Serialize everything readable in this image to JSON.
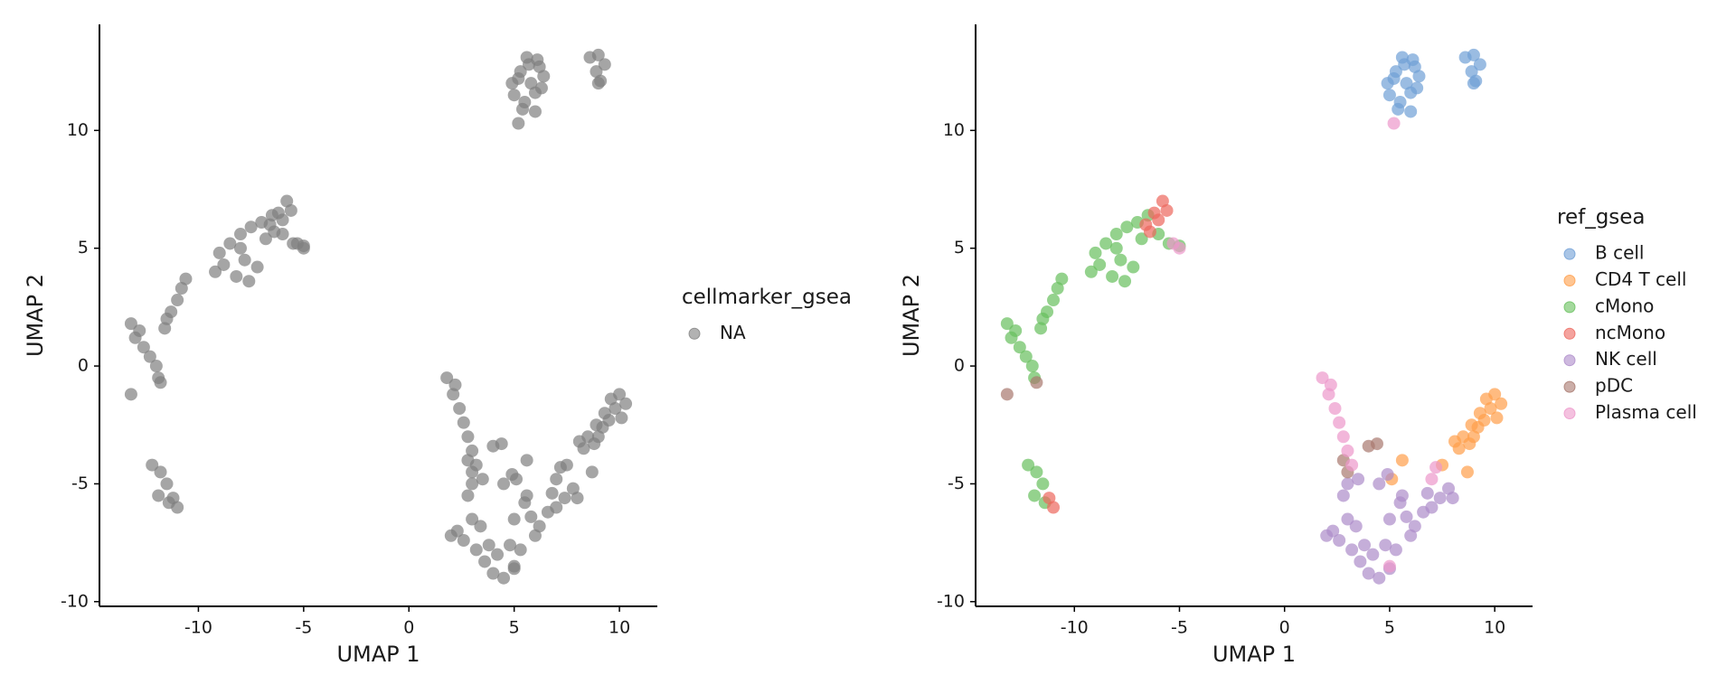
{
  "chart_data": [
    {
      "type": "scatter",
      "xlabel": "UMAP 1",
      "ylabel": "UMAP 2",
      "legend_title": "cellmarker_gsea",
      "xlim": [
        -14.7,
        11.8
      ],
      "ylim": [
        -10.2,
        14.5
      ],
      "xticks": [
        -10,
        -5,
        0,
        5,
        10
      ],
      "yticks": [
        -10,
        -5,
        0,
        5,
        10
      ],
      "series": [
        {
          "name": "NA",
          "color": "#7f7f7f",
          "x": [
            4.9,
            5.3,
            5.7,
            6.1,
            6.4,
            5.0,
            5.5,
            6.0,
            6.3,
            5.2,
            5.8,
            6.2,
            5.6,
            5.4,
            6.0,
            8.6,
            9.0,
            9.3,
            8.9,
            9.1,
            9.0,
            10.0,
            10.3,
            9.8,
            9.5,
            9.2,
            9.0,
            8.8,
            8.5,
            8.3,
            8.1,
            9.6,
            10.1,
            9.3,
            8.9,
            5.6,
            7.5,
            5.1,
            8.7,
            -9.0,
            -8.5,
            -8.0,
            -7.5,
            -7.0,
            -6.5,
            -6.0,
            -8.8,
            -8.2,
            -7.6,
            -7.8,
            -9.2,
            -5.5,
            -5.0,
            -8.0,
            -11.6,
            -11.3,
            -11.0,
            -10.8,
            -10.6,
            -11.5,
            -13.2,
            -13.0,
            -12.6,
            -12.3,
            -12.0,
            -12.8,
            -11.9,
            -12.2,
            -11.8,
            -11.5,
            -11.9,
            -11.4,
            -7.2,
            -6.8,
            -6.6,
            -6.2,
            -5.8,
            -5.6,
            -6.0,
            -6.4,
            -11.0,
            -11.2,
            2.0,
            2.6,
            3.2,
            3.6,
            4.0,
            4.5,
            5.0,
            4.2,
            4.8,
            3.8,
            5.3,
            3.0,
            2.8,
            3.0,
            3.5,
            4.5,
            5.5,
            5.8,
            6.2,
            6.6,
            7.0,
            7.4,
            7.8,
            8.0,
            6.8,
            6.0,
            5.6,
            4.9,
            3.4,
            5.0,
            2.3,
            4.0,
            4.4,
            3.0,
            2.8,
            -11.8,
            -13.2,
            1.8,
            2.1,
            2.4,
            2.6,
            2.8,
            3.0,
            3.2,
            2.2,
            -5.0,
            -5.3,
            5.2,
            5.0,
            7.0,
            7.2
          ],
          "y": [
            12.0,
            12.5,
            12.8,
            13.0,
            12.3,
            11.5,
            11.2,
            11.6,
            11.8,
            12.2,
            12.0,
            12.7,
            13.1,
            10.9,
            10.8,
            13.1,
            13.2,
            12.8,
            12.5,
            12.1,
            12.0,
            -1.2,
            -1.6,
            -1.8,
            -2.3,
            -2.6,
            -3.0,
            -3.3,
            -3.0,
            -3.5,
            -3.2,
            -1.4,
            -2.2,
            -2.0,
            -2.5,
            -4.0,
            -4.2,
            -4.8,
            -4.5,
            4.8,
            5.2,
            5.6,
            5.9,
            6.1,
            6.4,
            5.6,
            4.3,
            3.8,
            3.6,
            4.5,
            4.0,
            5.2,
            5.1,
            5.0,
            1.6,
            2.3,
            2.8,
            3.3,
            3.7,
            2.0,
            1.8,
            1.2,
            0.8,
            0.4,
            0.0,
            1.5,
            -0.5,
            -4.2,
            -4.5,
            -5.0,
            -5.5,
            -5.8,
            4.2,
            5.4,
            6.0,
            6.5,
            7.0,
            6.6,
            6.2,
            5.7,
            -6.0,
            -5.6,
            -7.2,
            -7.4,
            -7.8,
            -8.3,
            -8.8,
            -9.0,
            -8.6,
            -8.0,
            -7.6,
            -7.6,
            -7.8,
            -6.5,
            -5.5,
            -5.0,
            -4.8,
            -5.0,
            -5.8,
            -6.4,
            -6.8,
            -6.2,
            -6.0,
            -5.6,
            -5.2,
            -5.6,
            -5.4,
            -7.2,
            -5.5,
            -4.6,
            -6.8,
            -6.5,
            -7.0,
            -3.4,
            -3.3,
            -4.5,
            -4.0,
            -0.7,
            -1.2,
            -0.5,
            -1.2,
            -1.8,
            -2.4,
            -3.0,
            -3.6,
            -4.2,
            -0.8,
            5.0,
            5.2,
            10.3,
            -8.5,
            -4.8,
            -4.3
          ]
        }
      ]
    },
    {
      "type": "scatter",
      "xlabel": "UMAP 1",
      "ylabel": "UMAP 2",
      "legend_title": "ref_gsea",
      "xlim": [
        -14.7,
        11.8
      ],
      "ylim": [
        -10.2,
        14.5
      ],
      "xticks": [
        -10,
        -5,
        0,
        5,
        10
      ],
      "yticks": [
        -10,
        -5,
        0,
        5,
        10
      ],
      "series": [
        {
          "name": "B cell",
          "color": "#6f9fd6",
          "x": [
            4.9,
            5.3,
            5.7,
            6.1,
            6.4,
            5.0,
            5.5,
            6.0,
            6.3,
            5.2,
            5.8,
            6.2,
            5.6,
            5.4,
            6.0,
            8.6,
            9.0,
            9.3,
            8.9,
            9.1,
            9.0
          ],
          "y": [
            12.0,
            12.5,
            12.8,
            13.0,
            12.3,
            11.5,
            11.2,
            11.6,
            11.8,
            12.2,
            12.0,
            12.7,
            13.1,
            10.9,
            10.8,
            13.1,
            13.2,
            12.8,
            12.5,
            12.1,
            12.0
          ]
        },
        {
          "name": "CD4 T cell",
          "color": "#ff9e4a",
          "x": [
            10.0,
            10.3,
            9.8,
            9.5,
            9.2,
            9.0,
            8.8,
            8.5,
            8.3,
            8.1,
            9.6,
            10.1,
            9.3,
            8.9,
            5.6,
            7.5,
            5.1,
            8.7
          ],
          "y": [
            -1.2,
            -1.6,
            -1.8,
            -2.3,
            -2.6,
            -3.0,
            -3.3,
            -3.0,
            -3.5,
            -3.2,
            -1.4,
            -2.2,
            -2.0,
            -2.5,
            -4.0,
            -4.2,
            -4.8,
            -4.5
          ]
        },
        {
          "name": "cMono",
          "color": "#67bf5c",
          "x": [
            -9.0,
            -8.5,
            -8.0,
            -7.5,
            -7.0,
            -6.5,
            -6.0,
            -8.8,
            -8.2,
            -7.6,
            -7.8,
            -9.2,
            -5.5,
            -5.0,
            -8.0,
            -11.6,
            -11.3,
            -11.0,
            -10.8,
            -10.6,
            -11.5,
            -13.2,
            -13.0,
            -12.6,
            -12.3,
            -12.0,
            -12.8,
            -11.9,
            -12.2,
            -11.8,
            -11.5,
            -11.9,
            -11.4,
            -7.2,
            -6.8
          ],
          "y": [
            4.8,
            5.2,
            5.6,
            5.9,
            6.1,
            6.4,
            5.6,
            4.3,
            3.8,
            3.6,
            4.5,
            4.0,
            5.2,
            5.1,
            5.0,
            1.6,
            2.3,
            2.8,
            3.3,
            3.7,
            2.0,
            1.8,
            1.2,
            0.8,
            0.4,
            0.0,
            1.5,
            -0.5,
            -4.2,
            -4.5,
            -5.0,
            -5.5,
            -5.8,
            4.2,
            5.4
          ]
        },
        {
          "name": "ncMono",
          "color": "#ed665d",
          "x": [
            -6.6,
            -6.2,
            -5.8,
            -5.6,
            -6.0,
            -6.4,
            -11.0,
            -11.2
          ],
          "y": [
            6.0,
            6.5,
            7.0,
            6.6,
            6.2,
            5.7,
            -6.0,
            -5.6
          ]
        },
        {
          "name": "NK cell",
          "color": "#ad8bc9",
          "x": [
            2.0,
            2.6,
            3.2,
            3.6,
            4.0,
            4.5,
            5.0,
            4.2,
            4.8,
            3.8,
            5.3,
            3.0,
            2.8,
            3.0,
            3.5,
            4.5,
            5.5,
            5.8,
            6.2,
            6.6,
            7.0,
            7.4,
            7.8,
            8.0,
            6.8,
            6.0,
            5.6,
            4.9,
            3.4,
            5.0,
            2.3
          ],
          "y": [
            -7.2,
            -7.4,
            -7.8,
            -8.3,
            -8.8,
            -9.0,
            -8.6,
            -8.0,
            -7.6,
            -7.6,
            -7.8,
            -6.5,
            -5.5,
            -5.0,
            -4.8,
            -5.0,
            -5.8,
            -6.4,
            -6.8,
            -6.2,
            -6.0,
            -5.6,
            -5.2,
            -5.6,
            -5.4,
            -7.2,
            -5.5,
            -4.6,
            -6.8,
            -6.5,
            -7.0
          ]
        },
        {
          "name": "pDC",
          "color": "#a8786e",
          "x": [
            4.0,
            4.4,
            3.0,
            2.8,
            -11.8,
            -13.2
          ],
          "y": [
            -3.4,
            -3.3,
            -4.5,
            -4.0,
            -0.7,
            -1.2
          ]
        },
        {
          "name": "Plasma cell",
          "color": "#ed97ca",
          "x": [
            1.8,
            2.1,
            2.4,
            2.6,
            2.8,
            3.0,
            3.2,
            2.2,
            -5.0,
            -5.3,
            5.2,
            5.0,
            7.0,
            7.2
          ],
          "y": [
            -0.5,
            -1.2,
            -1.8,
            -2.4,
            -3.0,
            -3.6,
            -4.2,
            -0.8,
            5.0,
            5.2,
            10.3,
            -8.5,
            -4.8,
            -4.3
          ]
        }
      ]
    }
  ]
}
